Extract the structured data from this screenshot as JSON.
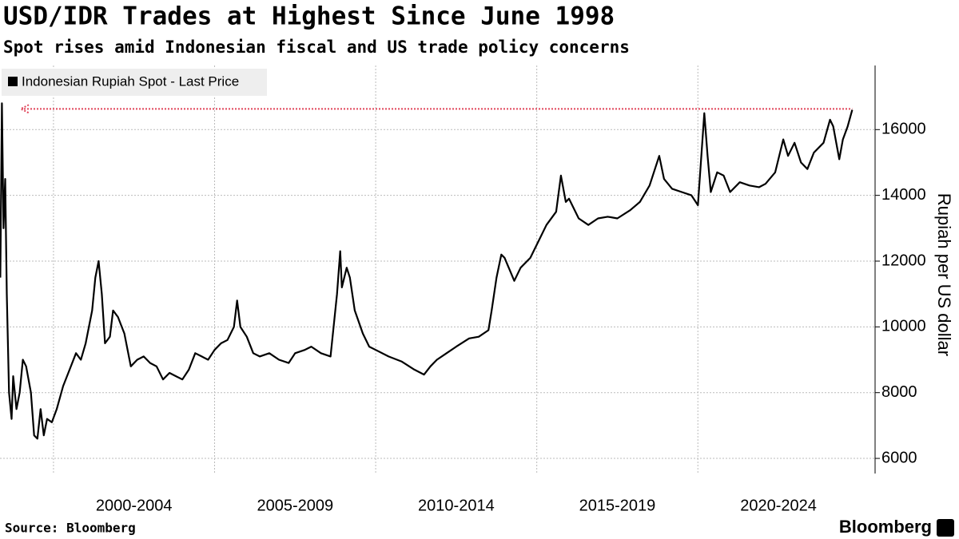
{
  "chart_data": {
    "type": "line",
    "title": "USD/IDR Trades at Highest Since June 1998",
    "subtitle": "Spot rises amid Indonesian fiscal and US trade policy concerns",
    "y_axis_label": "Rupiah per US dollar",
    "source": "Source: Bloomberg",
    "brand": "Bloomberg",
    "xlim": [
      1998.34,
      2025.5
    ],
    "ylim": [
      5540,
      17950
    ],
    "yticks": [
      6000,
      8000,
      10000,
      12000,
      14000,
      16000
    ],
    "x_gridlines": [
      2000,
      2005,
      2010,
      2015,
      2020
    ],
    "xticks": [
      {
        "value": 2002.5,
        "label": "2000-2004"
      },
      {
        "value": 2007.5,
        "label": "2005-2009"
      },
      {
        "value": 2012.5,
        "label": "2010-2014"
      },
      {
        "value": 2017.5,
        "label": "2015-2019"
      },
      {
        "value": 2022.5,
        "label": "2020-2024"
      }
    ],
    "grid": true,
    "legend": "top-left",
    "reference_line": {
      "value": 16630,
      "color": "#e0455a"
    },
    "x": [
      1998.35,
      1998.4,
      1998.45,
      1998.5,
      1998.55,
      1998.62,
      1998.7,
      1998.75,
      1998.85,
      1998.95,
      1999.05,
      1999.15,
      1999.3,
      1999.4,
      1999.5,
      1999.6,
      1999.7,
      1999.8,
      1999.95,
      2000.1,
      2000.3,
      2000.5,
      2000.7,
      2000.85,
      2001.0,
      2001.2,
      2001.3,
      2001.4,
      2001.5,
      2001.6,
      2001.75,
      2001.85,
      2002.0,
      2002.2,
      2002.4,
      2002.6,
      2002.8,
      2003.0,
      2003.2,
      2003.4,
      2003.6,
      2003.8,
      2004.0,
      2004.2,
      2004.4,
      2004.6,
      2004.8,
      2005.0,
      2005.2,
      2005.4,
      2005.6,
      2005.7,
      2005.8,
      2006.0,
      2006.2,
      2006.4,
      2006.7,
      2007.0,
      2007.3,
      2007.5,
      2007.8,
      2008.0,
      2008.3,
      2008.6,
      2008.8,
      2008.9,
      2008.95,
      2009.1,
      2009.2,
      2009.35,
      2009.6,
      2009.8,
      2010.0,
      2010.4,
      2010.8,
      2011.2,
      2011.5,
      2011.7,
      2011.9,
      2012.2,
      2012.5,
      2012.9,
      2013.2,
      2013.5,
      2013.6,
      2013.75,
      2013.9,
      2014.0,
      2014.3,
      2014.5,
      2014.8,
      2015.0,
      2015.3,
      2015.6,
      2015.75,
      2015.9,
      2016.0,
      2016.3,
      2016.6,
      2016.9,
      2017.2,
      2017.5,
      2017.9,
      2018.2,
      2018.5,
      2018.8,
      2018.95,
      2019.2,
      2019.5,
      2019.8,
      2020.0,
      2020.2,
      2020.3,
      2020.4,
      2020.6,
      2020.8,
      2021.0,
      2021.3,
      2021.6,
      2021.9,
      2022.1,
      2022.4,
      2022.65,
      2022.8,
      2023.0,
      2023.2,
      2023.4,
      2023.6,
      2023.9,
      2024.1,
      2024.2,
      2024.39,
      2024.5,
      2024.65,
      2024.79
    ],
    "series": [
      {
        "name": "Indonesian Rupiah Spot - Last Price",
        "color": "#000000",
        "values": [
          11500,
          16800,
          13000,
          14500,
          11000,
          8000,
          7200,
          8500,
          7500,
          8000,
          9000,
          8800,
          8000,
          6700,
          6600,
          7500,
          6700,
          7200,
          7100,
          7500,
          8200,
          8700,
          9200,
          9000,
          9500,
          10500,
          11500,
          12000,
          11000,
          9500,
          9700,
          10500,
          10300,
          9800,
          8800,
          9000,
          9100,
          8900,
          8800,
          8400,
          8600,
          8500,
          8400,
          8700,
          9200,
          9100,
          9000,
          9300,
          9500,
          9600,
          10000,
          10800,
          10000,
          9700,
          9200,
          9100,
          9200,
          9000,
          8900,
          9200,
          9300,
          9400,
          9200,
          9100,
          11000,
          12300,
          11200,
          11800,
          11500,
          10500,
          9800,
          9400,
          9300,
          9100,
          8950,
          8700,
          8550,
          8800,
          9000,
          9200,
          9400,
          9650,
          9700,
          9900,
          10500,
          11500,
          12200,
          12100,
          11400,
          11800,
          12100,
          12500,
          13100,
          13500,
          14600,
          13800,
          13900,
          13300,
          13100,
          13300,
          13350,
          13300,
          13550,
          13800,
          14300,
          15200,
          14500,
          14200,
          14100,
          14000,
          13700,
          16500,
          15200,
          14100,
          14700,
          14600,
          14100,
          14400,
          14300,
          14250,
          14350,
          14700,
          15700,
          15200,
          15600,
          15000,
          14800,
          15300,
          15600,
          16300,
          16100,
          15100,
          15700,
          16100,
          16600
        ]
      }
    ]
  }
}
